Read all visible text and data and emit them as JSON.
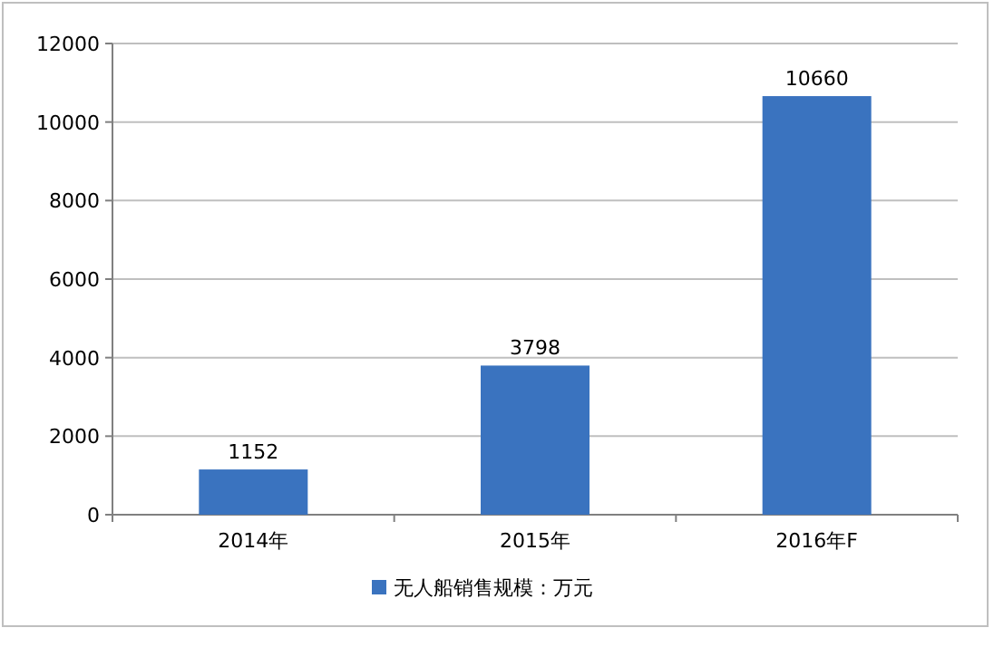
{
  "chart_data": {
    "type": "bar",
    "categories": [
      "2014年",
      "2015年",
      "2016年F"
    ],
    "series": [
      {
        "name": "无人船销售规模：万元",
        "color": "#3a73bf",
        "values": [
          1152,
          3798,
          10660
        ]
      }
    ],
    "ylim": [
      0,
      12000
    ],
    "yticks": [
      0,
      2000,
      4000,
      6000,
      8000,
      10000,
      12000
    ],
    "grid": "y",
    "legend": "bottom",
    "data_labels": true
  }
}
